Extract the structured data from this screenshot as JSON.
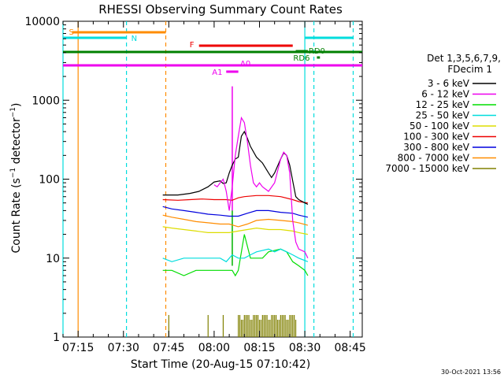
{
  "chart_data": {
    "type": "line",
    "title": "RHESSI Observing Summary Count Rates",
    "xlabel": "Start Time (20-Aug-15 07:10:42)",
    "ylabel": "Count Rate (s⁻¹ detector⁻¹)",
    "ylabel_main": "Count Rate (s",
    "ylabel_mid": " detector",
    "ylabel_end": ")",
    "ylabel_sup": "−1",
    "yscale": "log",
    "ylim": [
      1,
      10000
    ],
    "xlim": [
      "07:10",
      "08:49"
    ],
    "x_ticks": [
      "07:15",
      "07:30",
      "07:45",
      "08:00",
      "08:15",
      "08:30",
      "08:45"
    ],
    "y_ticks": [
      "1",
      "10",
      "100",
      "1000",
      "10000"
    ],
    "legend": {
      "placement": "right",
      "header_line1": "Det 1,3,5,6,7,9,",
      "header_line2": "FDecim 1"
    },
    "series": [
      {
        "name": "3 - 6 keV",
        "color": "#000000"
      },
      {
        "name": "6 - 12 keV",
        "color": "#ee00ee"
      },
      {
        "name": "12 - 25 keV",
        "color": "#00dd00"
      },
      {
        "name": "25 - 50 keV",
        "color": "#00dddd"
      },
      {
        "name": "50 - 100 keV",
        "color": "#dddd00"
      },
      {
        "name": "100 - 300 keV",
        "color": "#ee0000"
      },
      {
        "name": "300 - 800 keV",
        "color": "#0000dd"
      },
      {
        "name": "800 - 7000 keV",
        "color": "#ff8c00"
      },
      {
        "name": "7000 - 15000 keV",
        "color": "#808000"
      }
    ],
    "curves": {
      "black": [
        [
          "07:43",
          63
        ],
        [
          "07:48",
          63
        ],
        [
          "07:52",
          66
        ],
        [
          "07:55",
          70
        ],
        [
          "07:58",
          80
        ],
        [
          "08:00",
          92
        ],
        [
          "08:02",
          95
        ],
        [
          "08:03",
          88
        ],
        [
          "08:04",
          90
        ],
        [
          "08:05",
          120
        ],
        [
          "08:06",
          150
        ],
        [
          "08:07",
          180
        ],
        [
          "08:08",
          190
        ],
        [
          "08:09",
          350
        ],
        [
          "08:10",
          400
        ],
        [
          "08:11",
          330
        ],
        [
          "08:12",
          260
        ],
        [
          "08:14",
          190
        ],
        [
          "08:16",
          160
        ],
        [
          "08:18",
          120
        ],
        [
          "08:19",
          105
        ],
        [
          "08:20",
          120
        ],
        [
          "08:22",
          180
        ],
        [
          "08:23",
          215
        ],
        [
          "08:24",
          200
        ],
        [
          "08:25",
          150
        ],
        [
          "08:26",
          95
        ],
        [
          "08:27",
          60
        ],
        [
          "08:28",
          55
        ],
        [
          "08:30",
          50
        ],
        [
          "08:31",
          48
        ]
      ],
      "magenta": [
        [
          "08:00",
          85
        ],
        [
          "08:01",
          80
        ],
        [
          "08:02",
          90
        ],
        [
          "08:03",
          100
        ],
        [
          "08:04",
          70
        ],
        [
          "08:05",
          40
        ],
        [
          "08:06",
          80
        ],
        [
          "08:07",
          200
        ],
        [
          "08:08",
          350
        ],
        [
          "08:09",
          600
        ],
        [
          "08:10",
          520
        ],
        [
          "08:11",
          300
        ],
        [
          "08:12",
          150
        ],
        [
          "08:13",
          90
        ],
        [
          "08:14",
          80
        ],
        [
          "08:15",
          90
        ],
        [
          "08:16",
          80
        ],
        [
          "08:18",
          70
        ],
        [
          "08:20",
          90
        ],
        [
          "08:22",
          180
        ],
        [
          "08:23",
          220
        ],
        [
          "08:24",
          200
        ],
        [
          "08:25",
          120
        ],
        [
          "08:26",
          30
        ],
        [
          "08:27",
          16
        ],
        [
          "08:28",
          13
        ],
        [
          "08:30",
          12
        ],
        [
          "08:31",
          10
        ]
      ],
      "red": [
        [
          "07:43",
          55
        ],
        [
          "07:48",
          54
        ],
        [
          "07:52",
          55
        ],
        [
          "07:56",
          56
        ],
        [
          "08:00",
          55
        ],
        [
          "08:04",
          55
        ],
        [
          "08:06",
          54
        ],
        [
          "08:08",
          58
        ],
        [
          "08:10",
          60
        ],
        [
          "08:14",
          62
        ],
        [
          "08:18",
          62
        ],
        [
          "08:22",
          60
        ],
        [
          "08:26",
          55
        ],
        [
          "08:28",
          52
        ],
        [
          "08:31",
          50
        ]
      ],
      "blue": [
        [
          "07:43",
          45
        ],
        [
          "07:46",
          42
        ],
        [
          "07:50",
          40
        ],
        [
          "07:54",
          38
        ],
        [
          "07:58",
          36
        ],
        [
          "08:02",
          35
        ],
        [
          "08:05",
          34
        ],
        [
          "08:08",
          34
        ],
        [
          "08:11",
          37
        ],
        [
          "08:14",
          40
        ],
        [
          "08:18",
          40
        ],
        [
          "08:22",
          38
        ],
        [
          "08:26",
          37
        ],
        [
          "08:28",
          35
        ],
        [
          "08:31",
          33
        ]
      ],
      "orange": [
        [
          "07:43",
          35
        ],
        [
          "07:46",
          33
        ],
        [
          "07:50",
          31
        ],
        [
          "07:54",
          29
        ],
        [
          "07:58",
          28
        ],
        [
          "08:02",
          27
        ],
        [
          "08:05",
          27
        ],
        [
          "08:08",
          25
        ],
        [
          "08:11",
          27
        ],
        [
          "08:14",
          30
        ],
        [
          "08:18",
          31
        ],
        [
          "08:22",
          30
        ],
        [
          "08:26",
          29
        ],
        [
          "08:28",
          28
        ],
        [
          "08:31",
          26
        ]
      ],
      "yellow": [
        [
          "07:43",
          25
        ],
        [
          "07:46",
          24
        ],
        [
          "07:50",
          23
        ],
        [
          "07:54",
          22
        ],
        [
          "07:58",
          21
        ],
        [
          "08:02",
          21
        ],
        [
          "08:05",
          21
        ],
        [
          "08:08",
          22
        ],
        [
          "08:11",
          23
        ],
        [
          "08:14",
          24
        ],
        [
          "08:18",
          23
        ],
        [
          "08:22",
          23
        ],
        [
          "08:26",
          22
        ],
        [
          "08:28",
          21
        ],
        [
          "08:31",
          20
        ]
      ],
      "cyan": [
        [
          "07:43",
          10
        ],
        [
          "07:46",
          9
        ],
        [
          "07:50",
          10
        ],
        [
          "07:54",
          10
        ],
        [
          "07:58",
          10
        ],
        [
          "08:02",
          10
        ],
        [
          "08:04",
          9
        ],
        [
          "08:06",
          11
        ],
        [
          "08:08",
          10
        ],
        [
          "08:10",
          10
        ],
        [
          "08:12",
          11
        ],
        [
          "08:14",
          12
        ],
        [
          "08:18",
          13
        ],
        [
          "08:20",
          12
        ],
        [
          "08:22",
          13
        ],
        [
          "08:24",
          12
        ],
        [
          "08:26",
          11
        ],
        [
          "08:28",
          10
        ],
        [
          "08:31",
          9
        ]
      ],
      "green": [
        [
          "07:43",
          7
        ],
        [
          "07:46",
          7
        ],
        [
          "07:50",
          6
        ],
        [
          "07:54",
          7
        ],
        [
          "07:58",
          7
        ],
        [
          "08:02",
          7
        ],
        [
          "08:04",
          7
        ],
        [
          "08:06",
          7
        ],
        [
          "08:07",
          6
        ],
        [
          "08:08",
          7
        ],
        [
          "08:10",
          20
        ],
        [
          "08:12",
          10
        ],
        [
          "08:14",
          10
        ],
        [
          "08:16",
          10
        ],
        [
          "08:18",
          12
        ],
        [
          "08:22",
          13
        ],
        [
          "08:24",
          12
        ],
        [
          "08:26",
          9
        ],
        [
          "08:28",
          8
        ],
        [
          "08:30",
          7
        ],
        [
          "08:31",
          6
        ]
      ]
    },
    "spikes": {
      "magenta": [
        "08:06",
        1500
      ],
      "green": [
        "08:06",
        40
      ]
    },
    "verticals": [
      {
        "t": "07:15",
        "color": "#ff8c00",
        "dash": false
      },
      {
        "t": "07:10",
        "color": "#00dddd",
        "dash": false
      },
      {
        "t": "07:31",
        "color": "#00dddd",
        "dash": true
      },
      {
        "t": "07:44",
        "color": "#ff8c00",
        "dash": true
      },
      {
        "t": "08:30",
        "color": "#00dddd",
        "dash": false
      },
      {
        "t": "08:33",
        "color": "#00dddd",
        "dash": true
      },
      {
        "t": "08:46",
        "color": "#00dddd",
        "dash": true
      }
    ],
    "flag_bars": [
      {
        "label": "S",
        "color": "#ff8c00",
        "t0": "07:13",
        "t1": "07:44",
        "y": 41
      },
      {
        "label": "N",
        "color": "#00dddd",
        "t0": "07:10",
        "t1": "07:31",
        "y": 48
      },
      {
        "label": "F",
        "color": "#ee0000",
        "t0": "07:55",
        "t1": "08:26",
        "y": 58
      },
      {
        "label": "",
        "color": "#00dddd",
        "t0": "08:30",
        "t1": "08:46",
        "y": 48
      },
      {
        "label": "",
        "color": "#008000",
        "t0": "07:10",
        "t1": "08:49",
        "y": 66
      },
      {
        "label": "RD0",
        "color": "#008000",
        "t0": "08:27",
        "t1": "08:31",
        "y": 65
      },
      {
        "label": "RD6",
        "color": "#008000",
        "t0": "08:34",
        "t1": "08:35",
        "y": 73
      },
      {
        "label": "A0",
        "color": "#ee00ee",
        "t0": "07:10",
        "t1": "08:49",
        "y": 83
      },
      {
        "label": "A1",
        "color": "#ee00ee",
        "t0": "08:04",
        "t1": "08:08",
        "y": 91
      }
    ]
  },
  "footer": {
    "timestamp": "30-Oct-2021 13:56"
  }
}
